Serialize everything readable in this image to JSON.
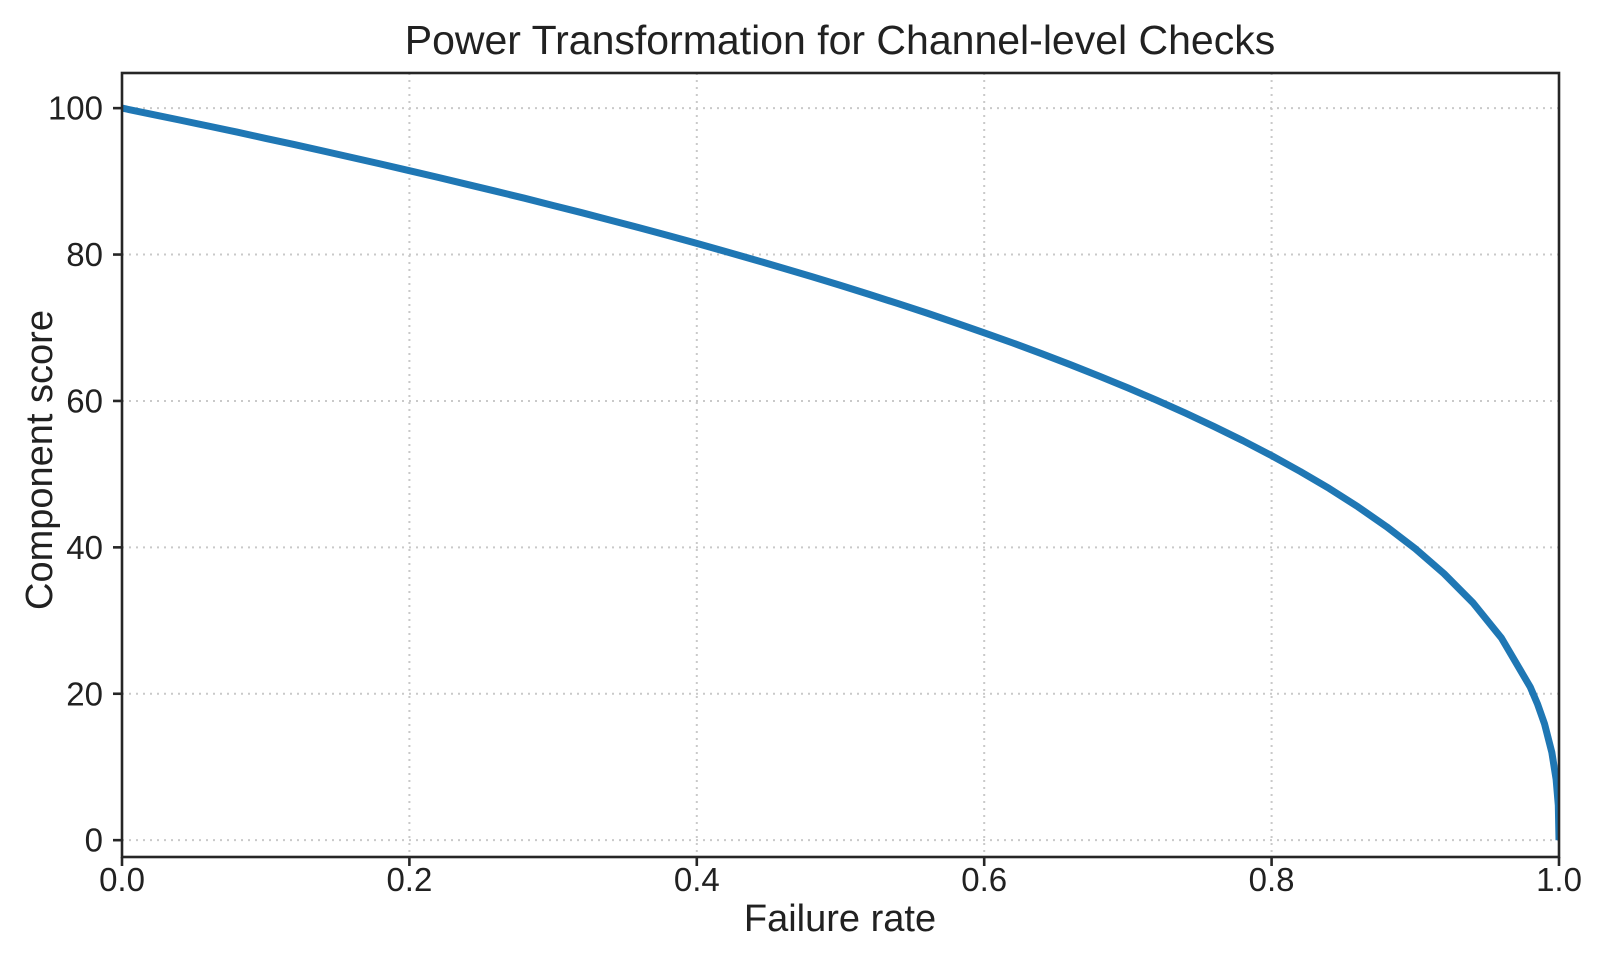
{
  "chart_data": {
    "type": "line",
    "title": "Power Transformation for Channel-level Checks",
    "xlabel": "Failure rate",
    "ylabel": "Component score",
    "xlim": [
      0.0,
      1.0
    ],
    "ylim": [
      0,
      100
    ],
    "xticks": [
      0.0,
      0.2,
      0.4,
      0.6,
      0.8,
      1.0
    ],
    "xtick_labels": [
      "0.0",
      "0.2",
      "0.4",
      "0.6",
      "0.8",
      "1.0"
    ],
    "yticks": [
      0,
      20,
      40,
      60,
      80,
      100
    ],
    "ytick_labels": [
      "0",
      "20",
      "40",
      "60",
      "80",
      "100"
    ],
    "grid": true,
    "grid_style": "dotted",
    "legend": false,
    "series": [
      {
        "name": "component_score_curve",
        "color": "#1f77b4",
        "line_width": 7,
        "x": [
          0,
          0.02,
          0.04,
          0.06,
          0.08,
          0.1,
          0.12,
          0.14,
          0.16,
          0.18,
          0.2,
          0.22,
          0.24,
          0.26,
          0.28,
          0.3,
          0.32,
          0.34,
          0.36,
          0.38,
          0.4,
          0.42,
          0.44,
          0.46,
          0.48,
          0.5,
          0.52,
          0.54,
          0.56,
          0.58,
          0.6,
          0.62,
          0.64,
          0.66,
          0.68,
          0.7,
          0.72,
          0.74,
          0.76,
          0.78,
          0.8,
          0.82,
          0.84,
          0.86,
          0.88,
          0.9,
          0.92,
          0.94,
          0.96,
          0.98,
          0.985,
          0.99,
          0.995,
          0.998,
          0.9995,
          1.0
        ],
        "y": [
          100,
          99.19,
          98.38,
          97.56,
          96.72,
          95.87,
          95.02,
          94.15,
          93.26,
          92.37,
          91.46,
          90.54,
          89.6,
          88.65,
          87.69,
          86.7,
          85.71,
          84.69,
          83.65,
          82.6,
          81.52,
          80.42,
          79.3,
          78.15,
          76.98,
          75.79,
          74.56,
          73.3,
          72.01,
          70.68,
          69.31,
          67.91,
          66.45,
          64.95,
          63.4,
          61.78,
          60.1,
          58.34,
          56.5,
          54.57,
          52.53,
          50.36,
          48.05,
          45.55,
          42.82,
          39.81,
          36.41,
          32.45,
          27.6,
          20.91,
          18.64,
          15.85,
          12.01,
          8.33,
          4.78,
          0
        ]
      }
    ]
  },
  "colors": {
    "background": "#ffffff",
    "line": "#1f77b4",
    "grid": "#c9c9c9",
    "spine": "#262626",
    "text": "#212121"
  }
}
